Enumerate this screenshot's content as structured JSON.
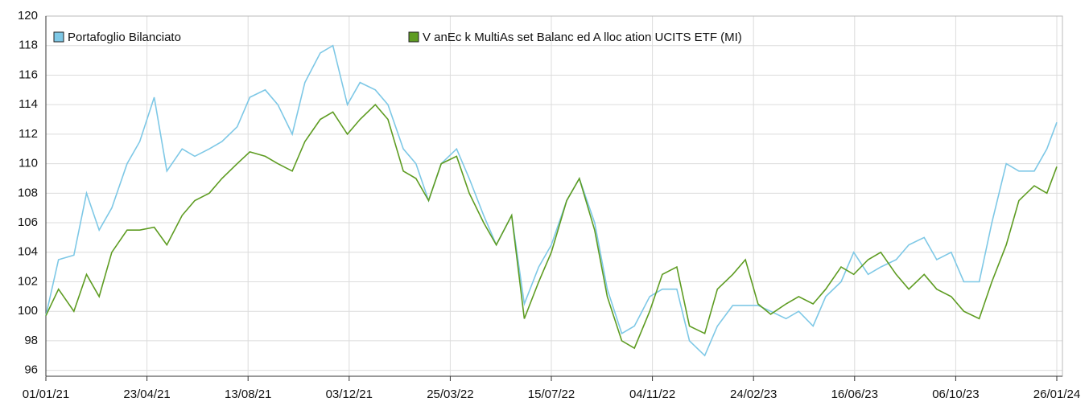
{
  "chart_data": {
    "type": "line",
    "x": [
      "01/01/21",
      "15/01/21",
      "01/02/21",
      "15/02/21",
      "01/03/21",
      "15/03/21",
      "01/04/21",
      "15/04/21",
      "01/05/21",
      "15/05/21",
      "01/06/21",
      "15/06/21",
      "01/07/21",
      "15/07/21",
      "01/08/21",
      "15/08/21",
      "01/09/21",
      "15/09/21",
      "01/10/21",
      "15/10/21",
      "01/11/21",
      "15/11/21",
      "01/12/21",
      "15/12/21",
      "01/01/22",
      "15/01/22",
      "01/02/22",
      "15/02/22",
      "01/03/22",
      "15/03/22",
      "01/04/22",
      "15/04/22",
      "01/05/22",
      "15/05/22",
      "01/06/22",
      "15/06/22",
      "01/07/22",
      "15/07/22",
      "01/08/22",
      "15/08/22",
      "01/09/22",
      "15/09/22",
      "01/10/22",
      "15/10/22",
      "01/11/22",
      "15/11/22",
      "01/12/22",
      "15/12/22",
      "01/01/23",
      "15/01/23",
      "01/02/23",
      "15/02/23",
      "01/03/23",
      "15/03/23",
      "01/04/23",
      "15/04/23",
      "01/05/23",
      "15/05/23",
      "01/06/23",
      "15/06/23",
      "01/07/23",
      "15/07/23",
      "01/08/23",
      "15/08/23",
      "01/09/23",
      "15/09/23",
      "01/10/23",
      "15/10/23",
      "01/11/23",
      "15/11/23",
      "01/12/23",
      "15/12/23",
      "01/01/24",
      "15/01/24",
      "26/01/24"
    ],
    "series": [
      {
        "name": "Portafoglio Bilanciato",
        "color": "#7ec8e6",
        "values": [
          99.7,
          103.5,
          103.8,
          108,
          105.5,
          107,
          110,
          111.5,
          114.5,
          109.5,
          111,
          110.5,
          111,
          111.5,
          112.5,
          114.5,
          115,
          114,
          112,
          115.5,
          117.5,
          118,
          114,
          115.5,
          115,
          114,
          111,
          110,
          107.5,
          110,
          111,
          109,
          106.5,
          104.5,
          106.5,
          100.5,
          103,
          104.5,
          107.5,
          109,
          106,
          101.5,
          98.5,
          99,
          101,
          101.5,
          101.5,
          98,
          97,
          99,
          100.4,
          100.4,
          100.4,
          100,
          99.5,
          100,
          99,
          101,
          102,
          104,
          102.5,
          103,
          103.5,
          104.5,
          105,
          103.5,
          104,
          102,
          102,
          106,
          110,
          109.5,
          109.5,
          111,
          112.8
        ]
      },
      {
        "name": "V anEc k MultiAs set Balanc ed A lloc ation UCITS ETF (MI)",
        "color": "#5e9c22",
        "values": [
          99.7,
          101.5,
          100,
          102.5,
          101,
          104,
          105.5,
          105.5,
          105.7,
          104.5,
          106.5,
          107.5,
          108,
          109,
          110,
          110.8,
          110.5,
          110,
          109.5,
          111.5,
          113,
          113.5,
          112,
          113,
          114,
          113,
          109.5,
          109,
          107.5,
          110,
          110.5,
          108,
          106,
          104.5,
          106.5,
          99.5,
          102,
          104,
          107.5,
          109,
          105.5,
          101,
          98,
          97.5,
          100,
          102.5,
          103,
          99,
          98.5,
          101.5,
          102.5,
          103.5,
          100.5,
          99.8,
          100.5,
          101,
          100.5,
          101.5,
          103,
          102.5,
          103.5,
          104,
          102.5,
          101.5,
          102.5,
          101.5,
          101,
          100,
          99.5,
          102,
          104.5,
          107.5,
          108.5,
          108,
          109.8
        ]
      }
    ],
    "xlim": [
      "01/01/21",
      "26/01/24"
    ],
    "xticks": [
      "01/01/21",
      "23/04/21",
      "13/08/21",
      "03/12/21",
      "25/03/22",
      "15/07/22",
      "04/11/22",
      "24/02/23",
      "16/06/23",
      "06/10/23",
      "26/01/24"
    ],
    "ylim": [
      95.6,
      120
    ],
    "yticks": [
      96,
      98,
      100,
      102,
      104,
      106,
      108,
      110,
      112,
      114,
      116,
      118,
      120
    ],
    "grid": true
  }
}
